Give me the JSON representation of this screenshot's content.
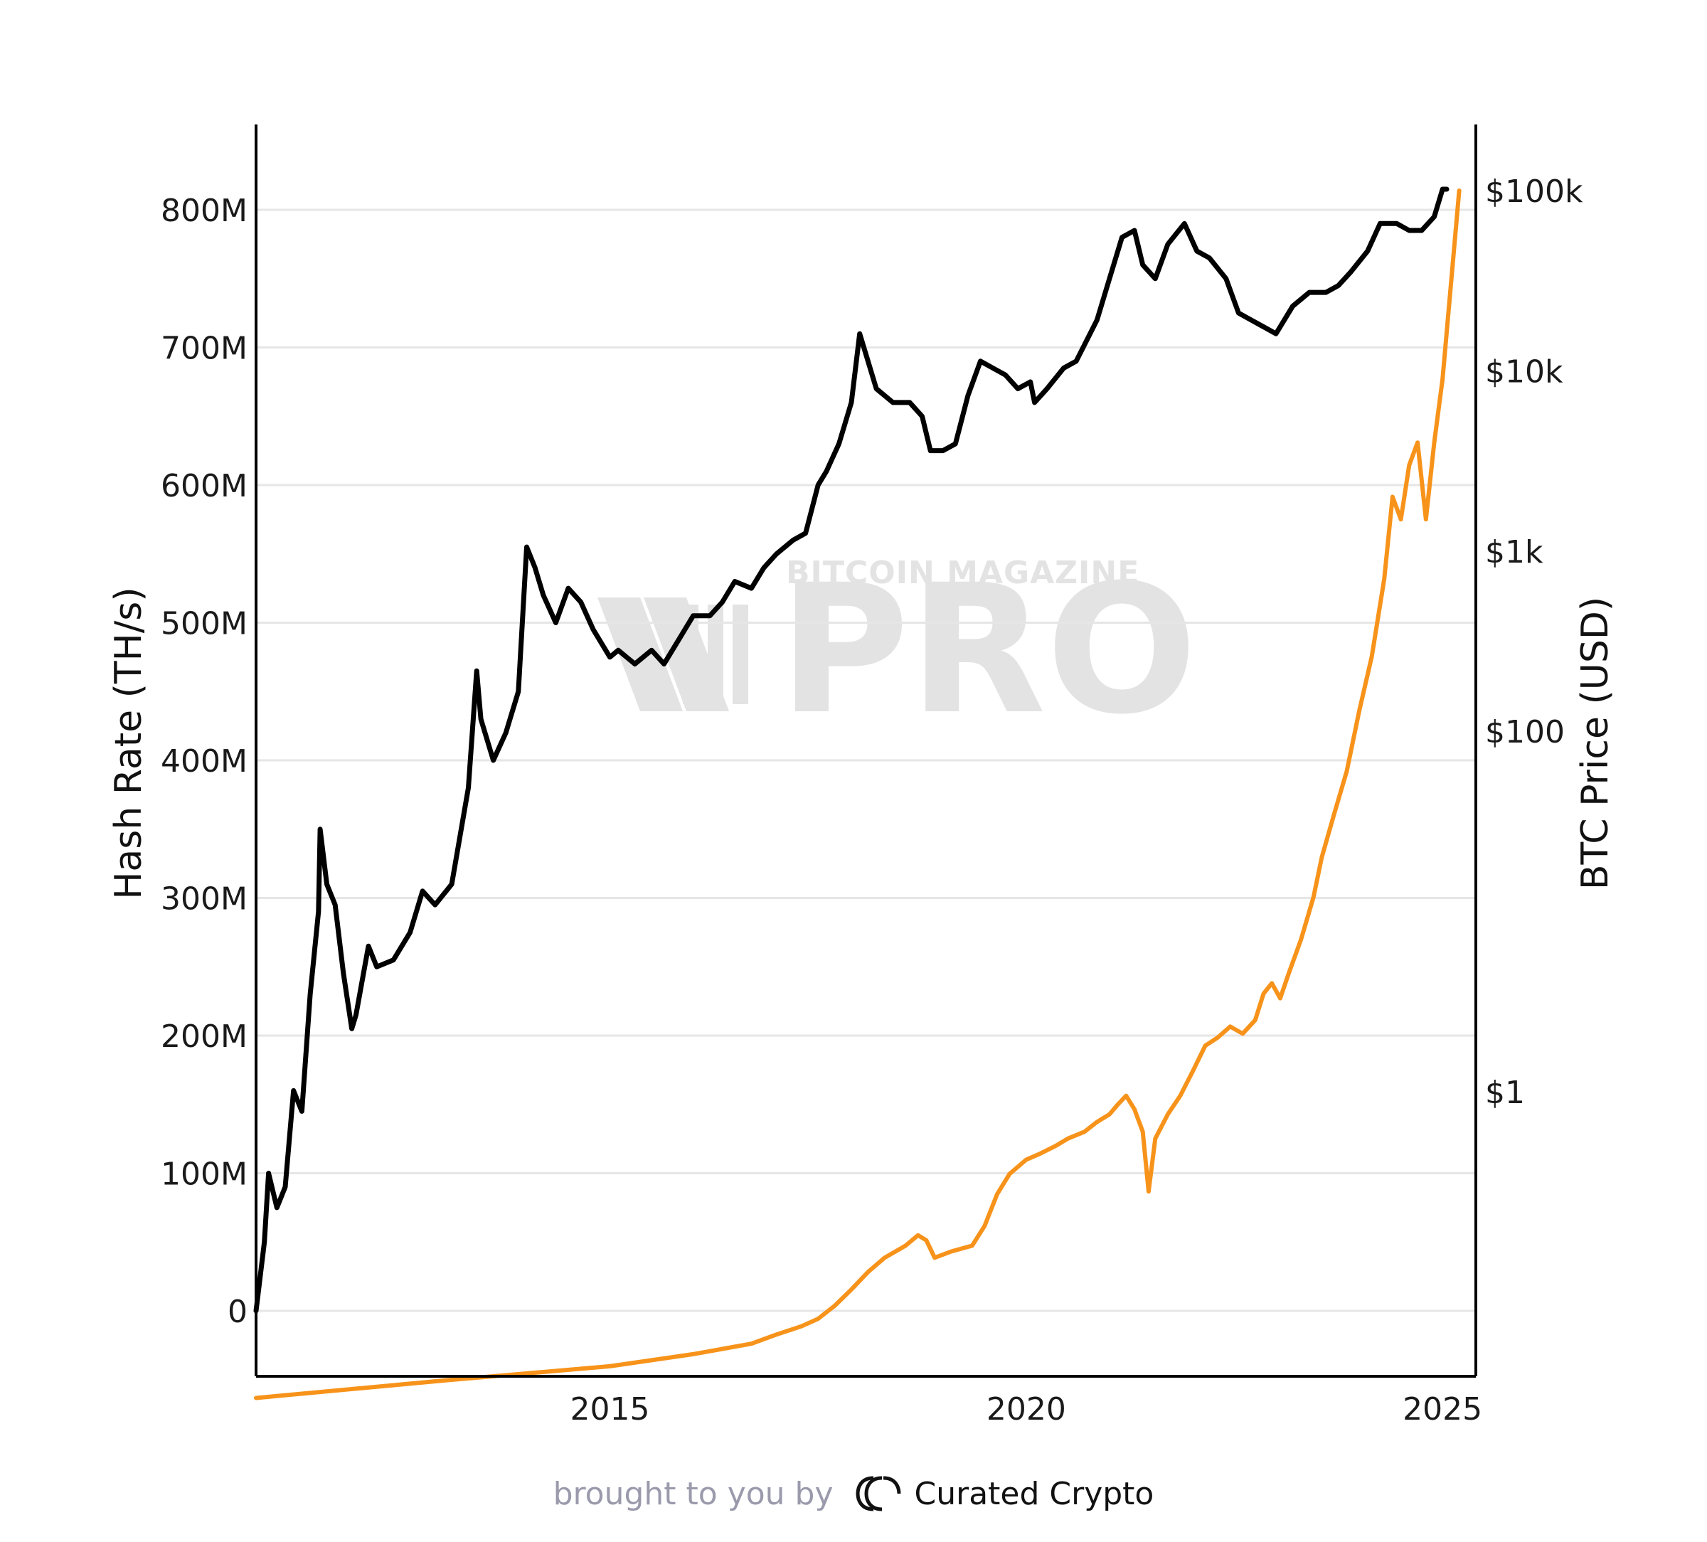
{
  "chart_data": {
    "type": "line",
    "watermark": {
      "top": "BITCOIN MAGAZINE",
      "main": "PRO"
    },
    "xlabel": "",
    "x_ticks": [
      2015,
      2020,
      2025
    ],
    "x_range": [
      2010.75,
      2025.4
    ],
    "y_left": {
      "label": "Hash Rate (TH/s)",
      "range": [
        -46000000,
        862000000
      ],
      "ticks": [
        0,
        100000000,
        200000000,
        300000000,
        400000000,
        500000000,
        600000000,
        700000000,
        800000000
      ],
      "tick_labels": [
        "0",
        "100M",
        "200M",
        "300M",
        "400M",
        "500M",
        "600M",
        "700M",
        "800M"
      ]
    },
    "y_right": {
      "label": "BTC Price (USD)",
      "scale": "log",
      "ticks": [
        1,
        100,
        1000,
        10000,
        100000
      ],
      "tick_labels": [
        "$1",
        "$100",
        "$1k",
        "$10k",
        "$100k"
      ]
    },
    "grid": true,
    "legend": "none",
    "series": [
      {
        "axis": "left",
        "color": "#000000",
        "points": [
          [
            2010.75,
            0
          ],
          [
            2010.85,
            50000000
          ],
          [
            2010.9,
            100000000
          ],
          [
            2011.0,
            75000000
          ],
          [
            2011.1,
            90000000
          ],
          [
            2011.2,
            160000000
          ],
          [
            2011.3,
            145000000
          ],
          [
            2011.4,
            230000000
          ],
          [
            2011.5,
            290000000
          ],
          [
            2011.52,
            350000000
          ],
          [
            2011.6,
            310000000
          ],
          [
            2011.7,
            295000000
          ],
          [
            2011.8,
            245000000
          ],
          [
            2011.9,
            205000000
          ],
          [
            2011.95,
            215000000
          ],
          [
            2012.1,
            265000000
          ],
          [
            2012.2,
            250000000
          ],
          [
            2012.4,
            255000000
          ],
          [
            2012.6,
            275000000
          ],
          [
            2012.75,
            305000000
          ],
          [
            2012.9,
            295000000
          ],
          [
            2013.1,
            310000000
          ],
          [
            2013.3,
            380000000
          ],
          [
            2013.4,
            465000000
          ],
          [
            2013.45,
            430000000
          ],
          [
            2013.6,
            400000000
          ],
          [
            2013.75,
            420000000
          ],
          [
            2013.9,
            450000000
          ],
          [
            2014.0,
            555000000
          ],
          [
            2014.1,
            540000000
          ],
          [
            2014.2,
            520000000
          ],
          [
            2014.35,
            500000000
          ],
          [
            2014.5,
            525000000
          ],
          [
            2014.65,
            515000000
          ],
          [
            2014.8,
            495000000
          ],
          [
            2015.0,
            475000000
          ],
          [
            2015.1,
            480000000
          ],
          [
            2015.3,
            470000000
          ],
          [
            2015.5,
            480000000
          ],
          [
            2015.65,
            470000000
          ],
          [
            2015.8,
            485000000
          ],
          [
            2016.0,
            505000000
          ],
          [
            2016.2,
            505000000
          ],
          [
            2016.35,
            515000000
          ],
          [
            2016.5,
            530000000
          ],
          [
            2016.7,
            525000000
          ],
          [
            2016.85,
            540000000
          ],
          [
            2017.0,
            550000000
          ],
          [
            2017.2,
            560000000
          ],
          [
            2017.35,
            565000000
          ],
          [
            2017.5,
            600000000
          ],
          [
            2017.6,
            610000000
          ],
          [
            2017.75,
            630000000
          ],
          [
            2017.9,
            660000000
          ],
          [
            2018.0,
            710000000
          ],
          [
            2018.1,
            690000000
          ],
          [
            2018.2,
            670000000
          ],
          [
            2018.4,
            660000000
          ],
          [
            2018.6,
            660000000
          ],
          [
            2018.75,
            650000000
          ],
          [
            2018.85,
            625000000
          ],
          [
            2019.0,
            625000000
          ],
          [
            2019.15,
            630000000
          ],
          [
            2019.3,
            665000000
          ],
          [
            2019.45,
            690000000
          ],
          [
            2019.6,
            685000000
          ],
          [
            2019.75,
            680000000
          ],
          [
            2019.9,
            670000000
          ],
          [
            2020.05,
            675000000
          ],
          [
            2020.1,
            660000000
          ],
          [
            2020.25,
            670000000
          ],
          [
            2020.45,
            685000000
          ],
          [
            2020.6,
            690000000
          ],
          [
            2020.85,
            720000000
          ],
          [
            2021.0,
            750000000
          ],
          [
            2021.15,
            780000000
          ],
          [
            2021.3,
            785000000
          ],
          [
            2021.4,
            760000000
          ],
          [
            2021.55,
            750000000
          ],
          [
            2021.7,
            775000000
          ],
          [
            2021.9,
            790000000
          ],
          [
            2022.05,
            770000000
          ],
          [
            2022.2,
            765000000
          ],
          [
            2022.4,
            750000000
          ],
          [
            2022.55,
            725000000
          ],
          [
            2022.7,
            720000000
          ],
          [
            2022.85,
            715000000
          ],
          [
            2023.0,
            710000000
          ],
          [
            2023.2,
            730000000
          ],
          [
            2023.4,
            740000000
          ],
          [
            2023.6,
            740000000
          ],
          [
            2023.75,
            745000000
          ],
          [
            2023.9,
            755000000
          ],
          [
            2024.1,
            770000000
          ],
          [
            2024.25,
            790000000
          ],
          [
            2024.45,
            790000000
          ],
          [
            2024.6,
            785000000
          ],
          [
            2024.75,
            785000000
          ],
          [
            2024.9,
            795000000
          ],
          [
            2025.0,
            815000000
          ],
          [
            2025.05,
            815000000
          ]
        ]
      },
      {
        "axis": "right",
        "color": "#f7931a",
        "points": [
          [
            2010.75,
            0.02
          ],
          [
            2013.0,
            0.025
          ],
          [
            2015.0,
            0.03
          ],
          [
            2016.0,
            0.035
          ],
          [
            2016.7,
            0.04
          ],
          [
            2017.0,
            0.045
          ],
          [
            2017.3,
            0.05
          ],
          [
            2017.5,
            0.055
          ],
          [
            2017.7,
            0.065
          ],
          [
            2017.9,
            0.08
          ],
          [
            2018.1,
            0.1
          ],
          [
            2018.3,
            0.12
          ],
          [
            2018.55,
            0.14
          ],
          [
            2018.7,
            0.16
          ],
          [
            2018.8,
            0.15
          ],
          [
            2018.9,
            0.12
          ],
          [
            2019.1,
            0.13
          ],
          [
            2019.35,
            0.14
          ],
          [
            2019.5,
            0.18
          ],
          [
            2019.65,
            0.27
          ],
          [
            2019.8,
            0.35
          ],
          [
            2020.0,
            0.42
          ],
          [
            2020.15,
            0.45
          ],
          [
            2020.35,
            0.5
          ],
          [
            2020.5,
            0.55
          ],
          [
            2020.7,
            0.6
          ],
          [
            2020.85,
            0.68
          ],
          [
            2021.0,
            0.75
          ],
          [
            2021.1,
            0.85
          ],
          [
            2021.2,
            0.95
          ],
          [
            2021.3,
            0.8
          ],
          [
            2021.4,
            0.6
          ],
          [
            2021.47,
            0.28
          ],
          [
            2021.55,
            0.55
          ],
          [
            2021.7,
            0.75
          ],
          [
            2021.85,
            0.95
          ],
          [
            2022.0,
            1.3
          ],
          [
            2022.15,
            1.8
          ],
          [
            2022.3,
            2.0
          ],
          [
            2022.45,
            2.3
          ],
          [
            2022.6,
            2.1
          ],
          [
            2022.75,
            2.5
          ],
          [
            2022.85,
            3.5
          ],
          [
            2022.95,
            4.0
          ],
          [
            2023.05,
            3.3
          ],
          [
            2023.15,
            4.5
          ],
          [
            2023.3,
            7.0
          ],
          [
            2023.45,
            12.0
          ],
          [
            2023.55,
            20.0
          ],
          [
            2023.7,
            35.0
          ],
          [
            2023.85,
            60.0
          ],
          [
            2024.0,
            130.0
          ],
          [
            2024.15,
            260.0
          ],
          [
            2024.3,
            700.0
          ],
          [
            2024.4,
            2000.0
          ],
          [
            2024.5,
            1500.0
          ],
          [
            2024.6,
            3000.0
          ],
          [
            2024.7,
            4000.0
          ],
          [
            2024.8,
            1500.0
          ],
          [
            2024.9,
            4000.0
          ],
          [
            2025.0,
            9000.0
          ],
          [
            2025.1,
            30000.0
          ],
          [
            2025.2,
            100000.0
          ]
        ]
      }
    ]
  },
  "footer": {
    "credit": "brought to you by",
    "brand": "Curated Crypto"
  }
}
